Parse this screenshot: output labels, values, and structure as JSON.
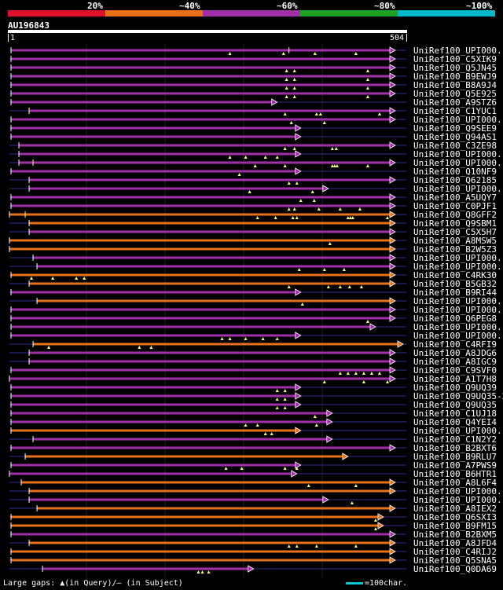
{
  "legend": {
    "labels": [
      "20%",
      "~40%",
      "~60%",
      "~80%",
      "~100%"
    ],
    "colors": [
      "#e0102a",
      "#e87018",
      "#a030a8",
      "#20a020",
      "#00b8c8"
    ]
  },
  "query": {
    "name": "AU196843",
    "start": "1",
    "end": "504",
    "length": 504
  },
  "colors": {
    "purple": "#a030a8",
    "orange": "#e87018",
    "thin": "#303090",
    "gap": "#ffff80"
  },
  "footer_text": "Large gaps: ▲(in Query)/– (in Subject)",
  "scale_text": "=100char.",
  "hits": [
    {
      "label": "UniRef100_UPI000..",
      "color": "purple",
      "start": 2,
      "end": 490,
      "arrow": "right",
      "gaps": [
        280,
        348,
        388,
        440
      ],
      "extra": 355
    },
    {
      "label": "UniRef100_C5XIK9",
      "color": "purple",
      "start": 2,
      "end": 490,
      "arrow": "right",
      "gaps": [],
      "extra": null
    },
    {
      "label": "UniRef100_Q5JN45",
      "color": "purple",
      "start": 2,
      "end": 490,
      "arrow": "right",
      "gaps": [
        352,
        362,
        455
      ],
      "extra": null
    },
    {
      "label": "UniRef100_B9EWJ9",
      "color": "purple",
      "start": 2,
      "end": 490,
      "arrow": "right",
      "gaps": [
        352,
        362,
        455
      ],
      "extra": null
    },
    {
      "label": "UniRef100_B8A9J4",
      "color": "purple",
      "start": 2,
      "end": 490,
      "arrow": "right",
      "gaps": [
        352,
        362,
        455
      ],
      "extra": null
    },
    {
      "label": "UniRef100_Q5E925",
      "color": "purple",
      "start": 2,
      "end": 490,
      "arrow": "right",
      "gaps": [
        352,
        362,
        455
      ],
      "extra": null
    },
    {
      "label": "UniRef100_A9STZ6",
      "color": "purple",
      "start": 2,
      "end": 340,
      "arrow": "right",
      "gaps": [],
      "extra": null
    },
    {
      "label": "UniRef100_C1YUC1",
      "color": "purple",
      "start": 25,
      "end": 490,
      "arrow": "right",
      "gaps": [
        350,
        390,
        395,
        470
      ],
      "extra": 25
    },
    {
      "label": "UniRef100_UPI000..",
      "color": "purple",
      "start": 2,
      "end": 490,
      "arrow": "right",
      "gaps": [
        358,
        400
      ],
      "extra": null
    },
    {
      "label": "UniRef100_Q9SEE9",
      "color": "purple",
      "start": 2,
      "end": 370,
      "arrow": "right",
      "gaps": [],
      "extra": null
    },
    {
      "label": "UniRef100_Q94AS1",
      "color": "purple",
      "start": 2,
      "end": 370,
      "arrow": "right",
      "gaps": [],
      "extra": null
    },
    {
      "label": "UniRef100_C3ZE98",
      "color": "purple",
      "start": 12,
      "end": 490,
      "arrow": "right",
      "gaps": [
        350,
        362,
        410,
        415
      ],
      "extra": null
    },
    {
      "label": "UniRef100_UPI000..",
      "color": "purple",
      "start": 12,
      "end": 370,
      "arrow": "right",
      "gaps": [
        280,
        300,
        325,
        340
      ],
      "extra": null
    },
    {
      "label": "UniRef100_UPI000..",
      "color": "purple",
      "start": 12,
      "end": 490,
      "arrow": "right",
      "gaps": [
        312,
        350,
        410,
        413,
        416,
        455
      ],
      "extra": 30
    },
    {
      "label": "UniRef100_Q10NF9",
      "color": "purple",
      "start": 2,
      "end": 370,
      "arrow": "right",
      "gaps": [
        292
      ],
      "extra": null
    },
    {
      "label": "UniRef100_Q62185",
      "color": "purple",
      "start": 25,
      "end": 490,
      "arrow": "right",
      "gaps": [
        355,
        365
      ],
      "extra": null
    },
    {
      "label": "UniRef100_UPI000..",
      "color": "purple",
      "start": 25,
      "end": 405,
      "arrow": "right",
      "gaps": [
        305,
        385
      ],
      "extra": null
    },
    {
      "label": "UniRef100_A5UQY7",
      "color": "purple",
      "start": 2,
      "end": 490,
      "arrow": "right",
      "gaps": [
        370,
        387
      ],
      "extra": null
    },
    {
      "label": "UniRef100_C0PJF1",
      "color": "purple",
      "start": 2,
      "end": 490,
      "arrow": "right",
      "gaps": [
        355,
        362,
        393,
        420,
        445
      ],
      "extra": null
    },
    {
      "label": "UniRef100_Q8GFF2",
      "color": "orange",
      "start": 0,
      "end": 490,
      "arrow": "right",
      "gaps": [
        315,
        338,
        360,
        365,
        430,
        433,
        436,
        480
      ],
      "extra": 20
    },
    {
      "label": "UniRef100_Q9SBM1",
      "color": "orange",
      "start": 25,
      "end": 490,
      "arrow": "right",
      "gaps": [],
      "extra": null
    },
    {
      "label": "UniRef100_C5X5H7",
      "color": "purple",
      "start": 25,
      "end": 490,
      "arrow": "right",
      "gaps": [],
      "extra": null
    },
    {
      "label": "UniRef100_A8MSW5",
      "color": "orange",
      "start": 0,
      "end": 490,
      "arrow": "right",
      "gaps": [
        407
      ],
      "extra": null
    },
    {
      "label": "UniRef100_B2W5Z3",
      "color": "orange",
      "start": 0,
      "end": 490,
      "arrow": "right",
      "gaps": [],
      "extra": null
    },
    {
      "label": "UniRef100_UPI000..",
      "color": "purple",
      "start": 30,
      "end": 490,
      "arrow": "right",
      "gaps": [],
      "extra": null
    },
    {
      "label": "UniRef100_UPI000..",
      "color": "purple",
      "start": 35,
      "end": 490,
      "arrow": "right",
      "gaps": [
        368,
        400,
        425
      ],
      "extra": null
    },
    {
      "label": "UniRef100_C4RK30",
      "color": "orange",
      "start": 2,
      "end": 490,
      "arrow": "right",
      "gaps": [
        28,
        55,
        85,
        95
      ],
      "extra": null
    },
    {
      "label": "UniRef100_B5GB32",
      "color": "orange",
      "start": 25,
      "end": 490,
      "arrow": "right",
      "gaps": [
        355,
        405,
        420,
        432,
        447
      ],
      "extra": null
    },
    {
      "label": "UniRef100_B9RI44",
      "color": "purple",
      "start": 2,
      "end": 370,
      "arrow": "right",
      "gaps": [],
      "extra": null
    },
    {
      "label": "UniRef100_UPI000..",
      "color": "orange",
      "start": 35,
      "end": 490,
      "arrow": "right",
      "gaps": [
        372
      ],
      "extra": null
    },
    {
      "label": "UniRef100_UPI000..",
      "color": "purple",
      "start": 2,
      "end": 490,
      "arrow": "right",
      "gaps": [],
      "extra": null
    },
    {
      "label": "UniRef100_Q6PEG8",
      "color": "purple",
      "start": 2,
      "end": 490,
      "arrow": "right",
      "gaps": [
        455
      ],
      "extra": null
    },
    {
      "label": "UniRef100_UPI000..",
      "color": "purple",
      "start": 2,
      "end": 465,
      "arrow": "right",
      "gaps": [],
      "extra": null
    },
    {
      "label": "UniRef100_UPI000..",
      "color": "purple",
      "start": 2,
      "end": 370,
      "arrow": "right",
      "gaps": [
        270,
        280,
        300,
        322,
        340
      ],
      "extra": null
    },
    {
      "label": "UniRef100_C4RFI9",
      "color": "orange",
      "start": 30,
      "end": 500,
      "arrow": "right",
      "gaps": [
        50,
        165,
        180
      ],
      "extra": null
    },
    {
      "label": "UniRef100_A8JDG6",
      "color": "purple",
      "start": 25,
      "end": 490,
      "arrow": "right",
      "gaps": [],
      "extra": null
    },
    {
      "label": "UniRef100_A8IGC9",
      "color": "purple",
      "start": 25,
      "end": 490,
      "arrow": "right",
      "gaps": [],
      "extra": null
    },
    {
      "label": "UniRef100_C9SVF0",
      "color": "purple",
      "start": 2,
      "end": 490,
      "arrow": "right",
      "gaps": [
        420,
        430,
        440,
        450,
        460,
        470
      ],
      "extra": null
    },
    {
      "label": "UniRef100_A1T7H8",
      "color": "purple",
      "start": 0,
      "end": 490,
      "arrow": "right",
      "gaps": [
        400,
        450,
        480
      ],
      "extra": null
    },
    {
      "label": "UniRef100_Q9UQ39",
      "color": "purple",
      "start": 2,
      "end": 370,
      "arrow": "right",
      "gaps": [
        340,
        350
      ],
      "extra": null
    },
    {
      "label": "UniRef100_Q9UQ35-2",
      "color": "purple",
      "start": 2,
      "end": 370,
      "arrow": "right",
      "gaps": [
        340,
        350
      ],
      "extra": null
    },
    {
      "label": "UniRef100_Q9UQ35",
      "color": "purple",
      "start": 2,
      "end": 370,
      "arrow": "right",
      "gaps": [
        340,
        350
      ],
      "extra": null
    },
    {
      "label": "UniRef100_C1UJ18",
      "color": "purple",
      "start": 2,
      "end": 410,
      "arrow": "right",
      "gaps": [
        388
      ],
      "extra": null
    },
    {
      "label": "UniRef100_Q4YEI4",
      "color": "purple",
      "start": 2,
      "end": 410,
      "arrow": "right",
      "gaps": [
        300,
        315,
        390
      ],
      "extra": null
    },
    {
      "label": "UniRef100_UPI000..",
      "color": "orange",
      "start": 2,
      "end": 370,
      "arrow": "right",
      "gaps": [
        325,
        333
      ],
      "extra": null
    },
    {
      "label": "UniRef100_C1N2Y2",
      "color": "purple",
      "start": 30,
      "end": 410,
      "arrow": "right",
      "gaps": [],
      "extra": null
    },
    {
      "label": "UniRef100_B2BXT6",
      "color": "purple",
      "start": 2,
      "end": 490,
      "arrow": "right",
      "gaps": [],
      "extra": null
    },
    {
      "label": "UniRef100_B9RLU7",
      "color": "orange",
      "start": 20,
      "end": 430,
      "arrow": "right",
      "gaps": [],
      "extra": null
    },
    {
      "label": "UniRef100_A7PWS9",
      "color": "purple",
      "start": 2,
      "end": 370,
      "arrow": "right",
      "gaps": [
        275,
        295,
        350,
        365
      ],
      "extra": null
    },
    {
      "label": "UniRef100_B6HTR1",
      "color": "purple",
      "start": 0,
      "end": 365,
      "arrow": "right",
      "gaps": [],
      "extra": null
    },
    {
      "label": "UniRef100_A8L6F4",
      "color": "orange",
      "start": 15,
      "end": 490,
      "arrow": "right",
      "gaps": [
        380,
        440
      ],
      "extra": null
    },
    {
      "label": "UniRef100_UPI000..",
      "color": "orange",
      "start": 25,
      "end": 490,
      "arrow": "right",
      "gaps": [],
      "extra": null
    },
    {
      "label": "UniRef100_UPI000..",
      "color": "purple",
      "start": 25,
      "end": 405,
      "arrow": "right",
      "gaps": [
        435
      ],
      "extra": null
    },
    {
      "label": "UniRef100_A8IEX2",
      "color": "orange",
      "start": 35,
      "end": 490,
      "arrow": "right",
      "gaps": [],
      "extra": null
    },
    {
      "label": "UniRef100_Q6SXI3",
      "color": "orange",
      "start": 2,
      "end": 475,
      "arrow": "right",
      "gaps": [
        465
      ],
      "extra": null
    },
    {
      "label": "UniRef100_B9FM15",
      "color": "orange",
      "start": 2,
      "end": 475,
      "arrow": "right",
      "gaps": [
        465
      ],
      "extra": null
    },
    {
      "label": "UniRef100_B2BXM5",
      "color": "purple",
      "start": 2,
      "end": 490,
      "arrow": "right",
      "gaps": [],
      "extra": null
    },
    {
      "label": "UniRef100_A8JFD4",
      "color": "orange",
      "start": 25,
      "end": 490,
      "arrow": "right",
      "gaps": [
        355,
        365,
        390,
        440
      ],
      "extra": null
    },
    {
      "label": "UniRef100_C4RIJ2",
      "color": "orange",
      "start": 2,
      "end": 490,
      "arrow": "right",
      "gaps": [],
      "extra": null
    },
    {
      "label": "UniRef100_Q5SNA5",
      "color": "orange",
      "start": 2,
      "end": 490,
      "arrow": "right",
      "gaps": [],
      "extra": null
    },
    {
      "label": "UniRef100_Q0DA69",
      "color": "purple",
      "start": 42,
      "end": 310,
      "arrow": "right",
      "gaps": [
        240,
        245,
        253
      ],
      "extra": null
    }
  ]
}
